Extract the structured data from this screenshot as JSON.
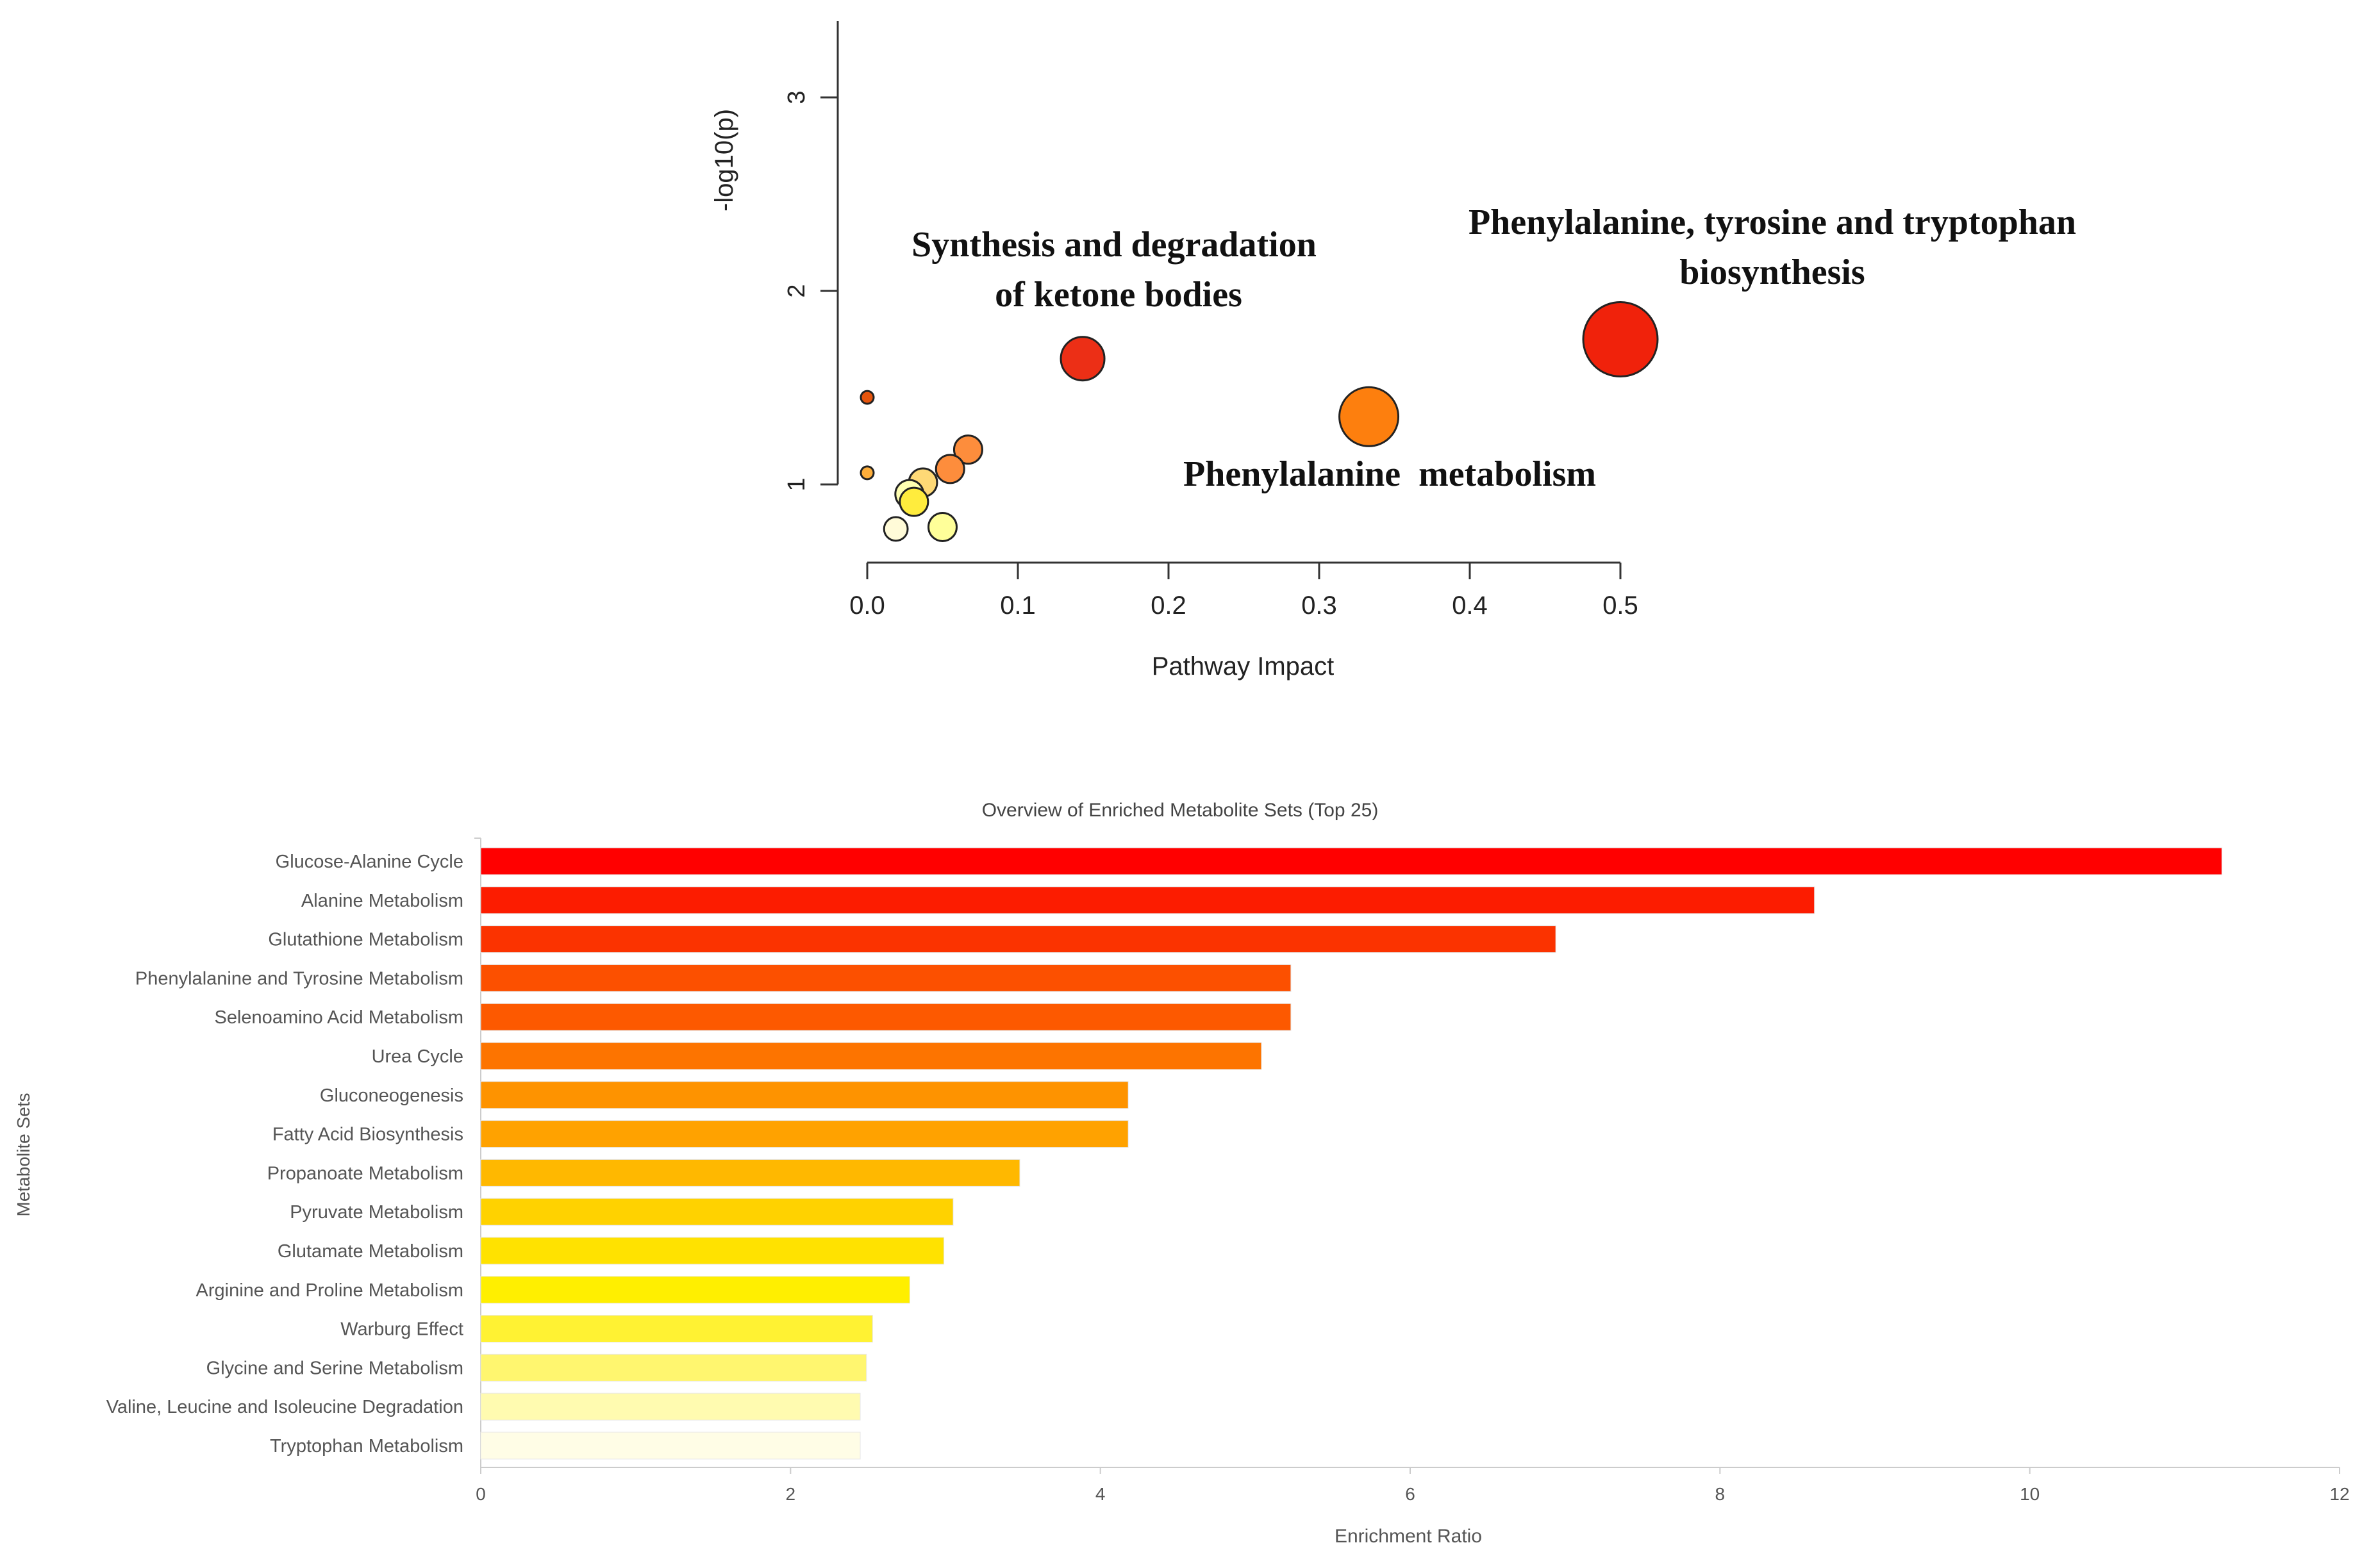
{
  "chart_data": [
    {
      "type": "scatter",
      "title": "",
      "xlabel": "Pathway Impact",
      "ylabel": "-log10(p)",
      "xlim": [
        0,
        0.5
      ],
      "ylim": [
        0.6,
        3.4
      ],
      "xticks": [
        "0.0",
        "0.1",
        "0.2",
        "0.3",
        "0.4",
        "0.5"
      ],
      "yticks": [
        "1",
        "2",
        "3"
      ],
      "points": [
        {
          "x": 0.0,
          "y": 1.45,
          "size": 1,
          "color": "#e6550d"
        },
        {
          "x": 0.0,
          "y": 1.06,
          "size": 1,
          "color": "#fdae3b"
        },
        {
          "x": 0.067,
          "y": 1.18,
          "size": 2,
          "color": "#fd8d3c"
        },
        {
          "x": 0.055,
          "y": 1.08,
          "size": 2,
          "color": "#fd8d3c"
        },
        {
          "x": 0.037,
          "y": 1.01,
          "size": 2,
          "color": "#fed976"
        },
        {
          "x": 0.028,
          "y": 0.95,
          "size": 2,
          "color": "#ffffb2"
        },
        {
          "x": 0.031,
          "y": 0.91,
          "size": 2,
          "color": "#ffec3d"
        },
        {
          "x": 0.019,
          "y": 0.77,
          "size": 1.7,
          "color": "#fffbd8"
        },
        {
          "x": 0.05,
          "y": 0.78,
          "size": 2,
          "color": "#ffff99"
        },
        {
          "x": 0.143,
          "y": 1.65,
          "size": 3,
          "color": "#ec2f16"
        },
        {
          "x": 0.333,
          "y": 1.35,
          "size": 4,
          "color": "#fd7f0e"
        },
        {
          "x": 0.5,
          "y": 1.75,
          "size": 5,
          "color": "#f0220b"
        }
      ],
      "annotations": [
        {
          "lines": [
            "Synthesis and degradation",
            "of ketone bodies"
          ]
        },
        {
          "lines": [
            "Phenylalanine, tyrosine and tryptophan",
            "biosynthesis"
          ]
        },
        {
          "lines": [
            "Phenylalanine  metabolism"
          ]
        }
      ]
    },
    {
      "type": "bar",
      "orientation": "horizontal",
      "title": "Overview of Enriched Metabolite Sets (Top 25)",
      "xlabel": "Enrichment Ratio",
      "ylabel": "Metabolite Sets",
      "xlim": [
        0,
        12
      ],
      "xticks": [
        "0",
        "2",
        "4",
        "6",
        "8",
        "10",
        "12"
      ],
      "categories": [
        "Glucose-Alanine Cycle",
        "Alanine Metabolism",
        "Glutathione Metabolism",
        "Phenylalanine and Tyrosine Metabolism",
        "Selenoamino Acid Metabolism",
        "Urea Cycle",
        "Gluconeogenesis",
        "Fatty Acid Biosynthesis",
        "Propanoate Metabolism",
        "Pyruvate Metabolism",
        "Glutamate Metabolism",
        "Arginine and Proline Metabolism",
        "Warburg Effect",
        "Glycine and Serine Metabolism",
        "Valine, Leucine and Isoleucine Degradation",
        "Tryptophan Metabolism"
      ],
      "values": [
        11.24,
        8.61,
        6.94,
        5.23,
        5.23,
        5.04,
        4.18,
        4.18,
        3.48,
        3.05,
        2.99,
        2.77,
        2.53,
        2.49,
        2.45,
        2.45
      ],
      "colors": [
        "#ff0000",
        "#fc1c00",
        "#fb3300",
        "#fc5000",
        "#fd5900",
        "#fd7400",
        "#fe9300",
        "#ffa200",
        "#ffb800",
        "#ffd200",
        "#ffe200",
        "#ffef00",
        "#fff233",
        "#fff66f",
        "#fffbb0",
        "#fffde6"
      ]
    }
  ]
}
